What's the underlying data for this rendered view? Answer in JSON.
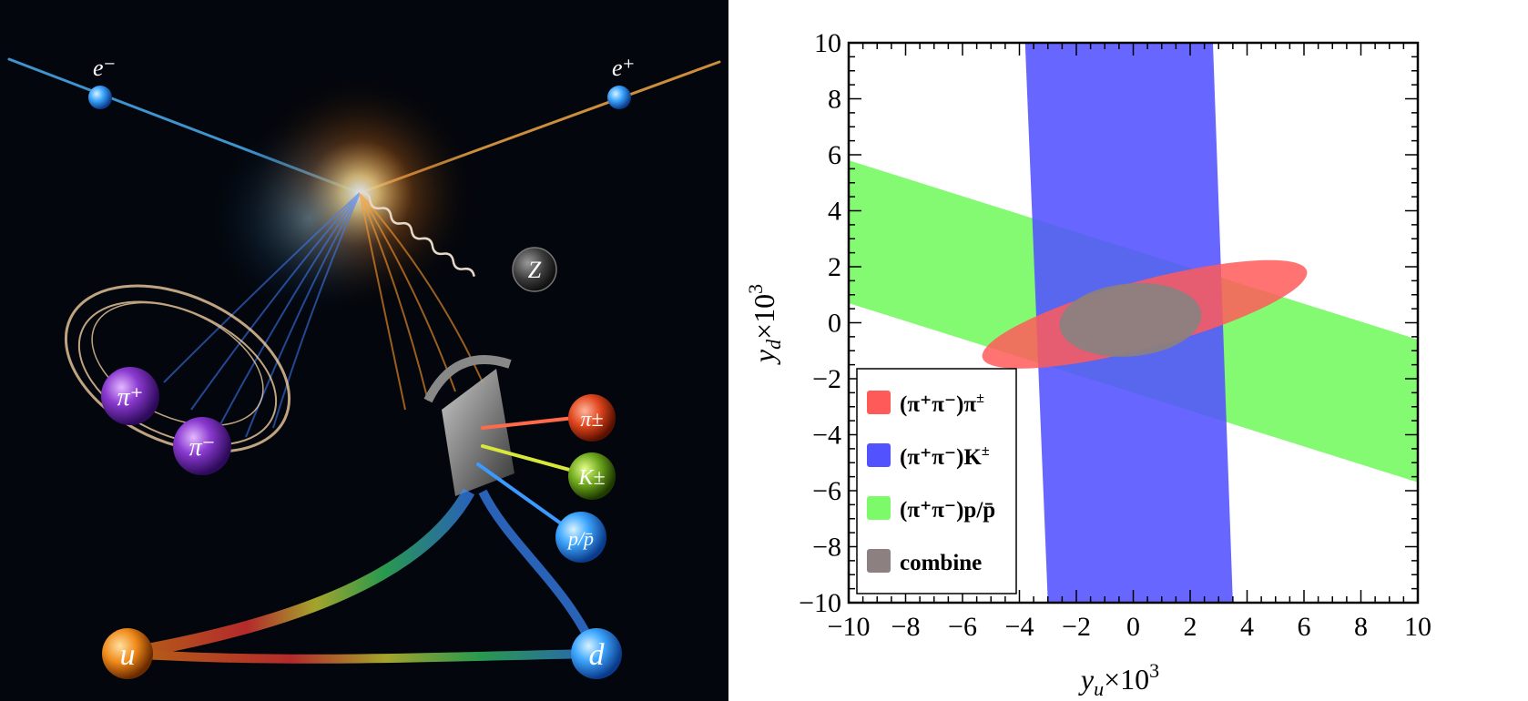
{
  "illustration": {
    "labels": {
      "electron": "e⁻",
      "positron": "e⁺",
      "z_boson": "Z",
      "pi_plus": "π⁺",
      "pi_minus": "π⁻",
      "pion_charged": "π±",
      "kaon_charged": "K±",
      "proton": "p/p̄",
      "up_quark": "u",
      "down_quark": "d"
    }
  },
  "chart_data": {
    "type": "contour",
    "xlabel_main": "y",
    "xlabel_sub": "u",
    "xlabel_suffix": "×10",
    "xlabel_power": "3",
    "ylabel_main": "y",
    "ylabel_sub": "d",
    "ylabel_suffix": "×10",
    "ylabel_power": "3",
    "xlim": [
      -10,
      10
    ],
    "ylim": [
      -10,
      10
    ],
    "xticks": [
      -10,
      -8,
      -6,
      -4,
      -2,
      0,
      2,
      4,
      6,
      8,
      10
    ],
    "yticks": [
      -10,
      -8,
      -6,
      -4,
      -2,
      0,
      2,
      4,
      6,
      8,
      10
    ],
    "legend_position": "bottom-left",
    "regions": [
      {
        "name": "(π⁺π⁻)π±",
        "shape": "ellipse",
        "color": "#ff5a5a",
        "cx": 0.4,
        "cy": 0.3,
        "rx": 5.9,
        "ry": 1.2,
        "angle_deg": 15.0
      },
      {
        "name": "(π⁺π⁻)K±",
        "shape": "band",
        "color": "#5252ff",
        "top": [
          [
            -3.8,
            10
          ],
          [
            2.8,
            10
          ]
        ],
        "bottom": [
          [
            -3.0,
            -10
          ],
          [
            3.5,
            -10
          ]
        ]
      },
      {
        "name": "(π⁺π⁻)p/p̄",
        "shape": "band",
        "color": "#7dfa6a",
        "left": [
          [
            -10,
            5.8
          ],
          [
            -10,
            0.7
          ]
        ],
        "right": [
          [
            10,
            -0.6
          ],
          [
            10,
            -5.7
          ]
        ]
      },
      {
        "name": "combine",
        "shape": "ellipse",
        "color": "#8c8080",
        "cx": -0.1,
        "cy": 0.1,
        "rx": 2.5,
        "ry": 1.3,
        "angle_deg": 5.0
      }
    ],
    "legend_entries": [
      {
        "label_main": "(π⁺π⁻)π",
        "label_sup": "±",
        "color": "#ff5a5a"
      },
      {
        "label_main": "(π⁺π⁻)K",
        "label_sup": "±",
        "color": "#5252ff"
      },
      {
        "label_main": "(π⁺π⁻)p/p̄",
        "label_sup": "",
        "color": "#7dfa6a"
      },
      {
        "label_main": "combine",
        "label_sup": "",
        "color": "#8c8080"
      }
    ]
  }
}
